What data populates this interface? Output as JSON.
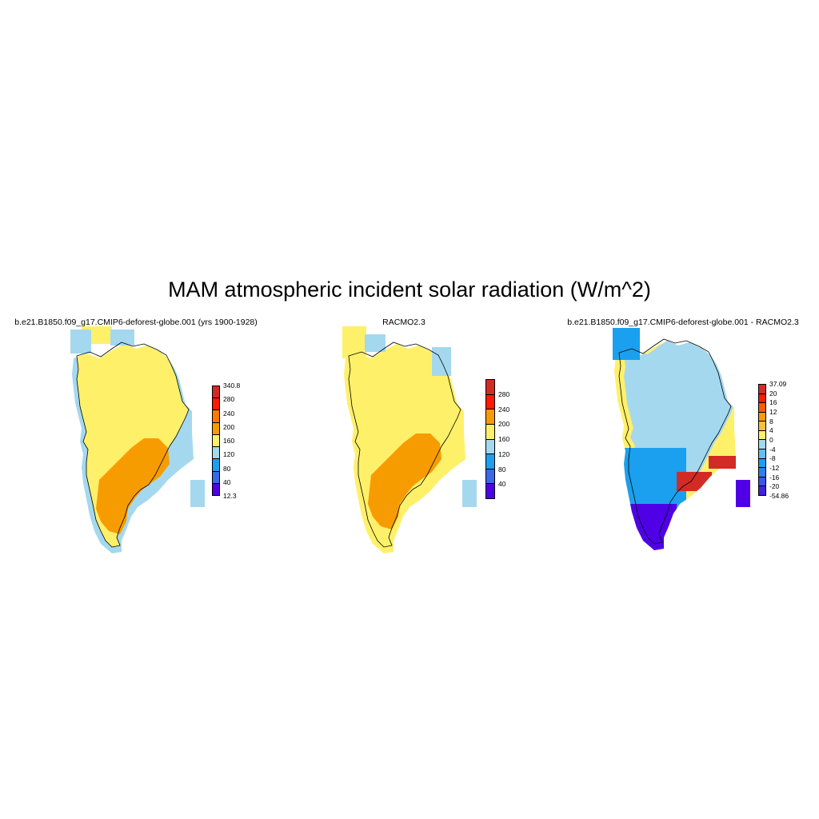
{
  "title": "MAM atmospheric incident solar radiation (W/m^2)",
  "panels": [
    {
      "title": "b.e21.B1850.f09_g17.CMIP6-deforest-globe.001 (yrs 1900-1928)",
      "legend": {
        "labels": [
          "340.8",
          "280",
          "240",
          "200",
          "160",
          "120",
          "80",
          "40",
          "12.3"
        ],
        "colors": [
          "#d22b26",
          "#ff1a00",
          "#ff7a00",
          "#f79c00",
          "#fff06a",
          "#a4d8ef",
          "#1aa0ee",
          "#3a68e8",
          "#4f00e6"
        ]
      },
      "fields": {
        "interior": "#fff06a",
        "south": "#f79c00",
        "margin": "#a4d8ef"
      }
    },
    {
      "title": "RACMO2.3",
      "legend": {
        "labels": [
          "280",
          "240",
          "200",
          "160",
          "120",
          "80",
          "40"
        ],
        "colors": [
          "#d22b26",
          "#ff1a00",
          "#f79c00",
          "#fff06a",
          "#a4d8ef",
          "#1aa0ee",
          "#3a68e8",
          "#4f00e6"
        ]
      },
      "fields": {
        "interior": "#fff06a",
        "south": "#f79c00",
        "margin": "#a4d8ef"
      }
    },
    {
      "title": "b.e21.B1850.f09_g17.CMIP6-deforest-globe.001 - RACMO2.3",
      "legend": {
        "labels": [
          "37.09",
          "20",
          "16",
          "12",
          "8",
          "4",
          "0",
          "-4",
          "-8",
          "-12",
          "-16",
          "-20",
          "-54.86"
        ],
        "colors": [
          "#d22b26",
          "#ff1a00",
          "#ff5a00",
          "#ff9a00",
          "#fcbf3b",
          "#fff06a",
          "#a4d8ef",
          "#62c0f0",
          "#1aa0ee",
          "#2f7eea",
          "#3a55e8",
          "#4020e6"
        ]
      },
      "fields": {
        "interior": "#a4d8ef",
        "coast": "#fff06a",
        "southwest": "#1aa0ee",
        "southtip": "#4f00e6",
        "east_coast": "#d22b26"
      }
    }
  ]
}
